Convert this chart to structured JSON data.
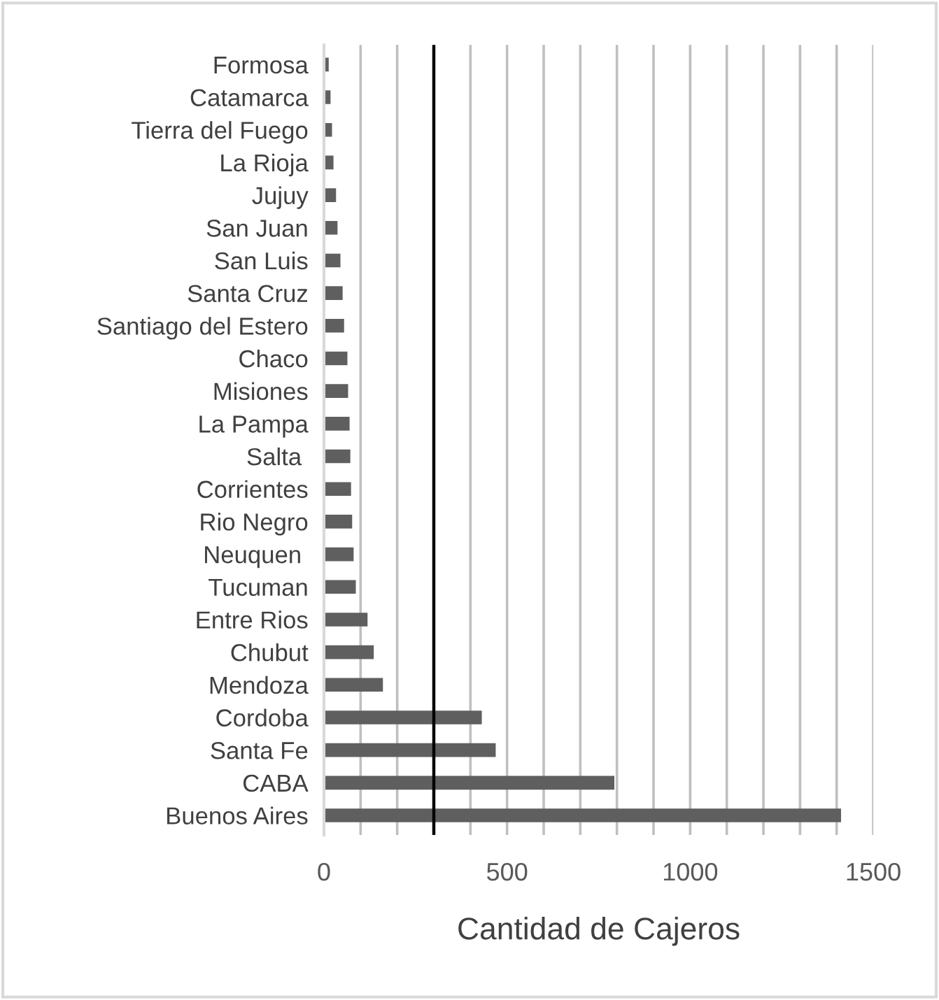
{
  "chart_data": {
    "type": "bar",
    "orientation": "horizontal",
    "xlabel": "Cantidad de Cajeros",
    "categories": [
      "Formosa",
      "Catamarca",
      "Tierra del Fuego",
      "La Rioja",
      "Jujuy",
      "San Juan",
      "San Luis",
      "Santa Cruz",
      "Santiago del Estero",
      "Chaco",
      "Misiones",
      "La Pampa",
      "Salta ",
      "Corrientes",
      "Rio Negro",
      "Neuquen ",
      "Tucuman",
      "Entre Rios",
      "Chubut",
      "Mendoza",
      "Cordoba",
      "Santa Fe",
      "CABA",
      "Buenos Aires"
    ],
    "values": [
      13,
      18,
      22,
      26,
      33,
      37,
      45,
      51,
      55,
      64,
      66,
      70,
      72,
      74,
      77,
      81,
      87,
      119,
      136,
      161,
      431,
      469,
      793,
      1412
    ],
    "color": "#5f5f5f",
    "xlim": [
      0,
      1500
    ],
    "xticks": [
      0,
      {
        "value": 100,
        "label": null
      },
      {
        "value": 200,
        "label": null
      },
      {
        "value": 300,
        "label": null
      },
      {
        "value": 400,
        "label": null
      },
      500,
      {
        "value": 600,
        "label": null
      },
      {
        "value": 700,
        "label": null
      },
      {
        "value": 800,
        "label": null
      },
      {
        "value": 900,
        "label": null
      },
      1000,
      {
        "value": 1100,
        "label": null
      },
      {
        "value": 1200,
        "label": null
      },
      {
        "value": 1300,
        "label": null
      },
      {
        "value": 1400,
        "label": null
      },
      1500
    ],
    "grid": "x",
    "ref_lines": [
      {
        "axis": "x",
        "value": 300,
        "color": "#000000"
      }
    ]
  }
}
